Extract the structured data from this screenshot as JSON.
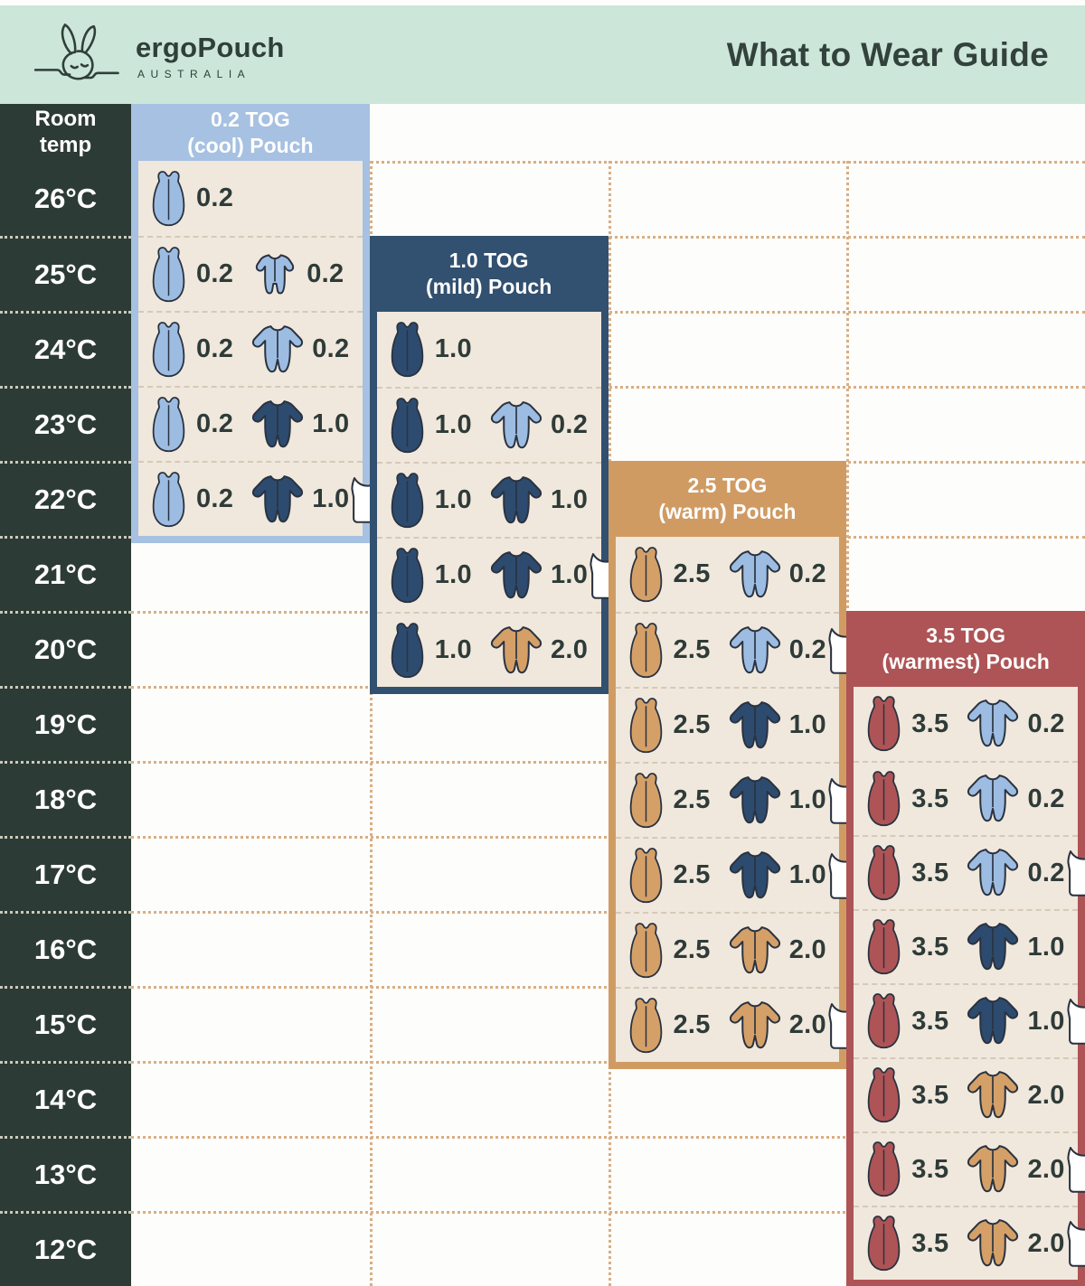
{
  "header": {
    "brand": "ergoPouch",
    "brand_sub": "AUSTRALIA",
    "title": "What to Wear Guide"
  },
  "temp_column": {
    "header_line1": "Room",
    "header_line2": "temp"
  },
  "colors": {
    "topbar_bg": "#cce6da",
    "dark_column_bg": "#2d3b36",
    "page_bg": "#fdfdfb",
    "panel_body_bg": "#f0e8dc",
    "text_dark": "#2e3b39",
    "text_light": "#ffffff",
    "grid_dot": "#d9ae84",
    "row_dash": "#d6c9b8",
    "icon_outline": "#2a3240",
    "garments": {
      "lightblue": "#9dbce2",
      "navy": "#2d4b6e",
      "tan": "#d4a068",
      "maroon": "#ae5456",
      "white": "#ffffff"
    }
  },
  "chart_data": {
    "type": "table",
    "title": "What to Wear Guide",
    "row_axis_label": "Room temp",
    "temps": [
      "26°C",
      "25°C",
      "24°C",
      "23°C",
      "22°C",
      "21°C",
      "20°C",
      "19°C",
      "18°C",
      "17°C",
      "16°C",
      "15°C",
      "14°C",
      "13°C",
      "12°C"
    ],
    "panels": [
      {
        "id": "cool",
        "title_line1": "0.2 TOG",
        "title_line2": "(cool) Pouch",
        "header_color": "#a6c1e1",
        "rows": [
          {
            "temp": "26°C",
            "items": [
              {
                "icon": "pouch",
                "color": "lightblue",
                "tog": "0.2"
              }
            ]
          },
          {
            "temp": "25°C",
            "items": [
              {
                "icon": "pouch",
                "color": "lightblue",
                "tog": "0.2"
              },
              {
                "icon": "romper",
                "color": "lightblue",
                "tog": "0.2"
              }
            ]
          },
          {
            "temp": "24°C",
            "items": [
              {
                "icon": "pouch",
                "color": "lightblue",
                "tog": "0.2"
              },
              {
                "icon": "sleepsuit",
                "color": "lightblue",
                "tog": "0.2"
              }
            ]
          },
          {
            "temp": "23°C",
            "items": [
              {
                "icon": "pouch",
                "color": "lightblue",
                "tog": "0.2"
              },
              {
                "icon": "sleepsuit",
                "color": "navy",
                "tog": "1.0"
              }
            ]
          },
          {
            "temp": "22°C",
            "items": [
              {
                "icon": "pouch",
                "color": "lightblue",
                "tog": "0.2"
              },
              {
                "icon": "sleepsuit",
                "color": "navy",
                "tog": "1.0"
              },
              {
                "icon": "singlet",
                "color": "white"
              }
            ]
          }
        ]
      },
      {
        "id": "mild",
        "title_line1": "1.0 TOG",
        "title_line2": "(mild) Pouch",
        "header_color": "#32506f",
        "rows": [
          {
            "temp": "24°C",
            "items": [
              {
                "icon": "pouch",
                "color": "navy",
                "tog": "1.0"
              }
            ]
          },
          {
            "temp": "23°C",
            "items": [
              {
                "icon": "pouch",
                "color": "navy",
                "tog": "1.0"
              },
              {
                "icon": "sleepsuit",
                "color": "lightblue",
                "tog": "0.2"
              }
            ]
          },
          {
            "temp": "22°C",
            "items": [
              {
                "icon": "pouch",
                "color": "navy",
                "tog": "1.0"
              },
              {
                "icon": "sleepsuit",
                "color": "navy",
                "tog": "1.0"
              }
            ]
          },
          {
            "temp": "21°C",
            "items": [
              {
                "icon": "pouch",
                "color": "navy",
                "tog": "1.0"
              },
              {
                "icon": "sleepsuit",
                "color": "navy",
                "tog": "1.0"
              },
              {
                "icon": "singlet",
                "color": "white"
              }
            ]
          },
          {
            "temp": "20°C",
            "items": [
              {
                "icon": "pouch",
                "color": "navy",
                "tog": "1.0"
              },
              {
                "icon": "sleepsuit",
                "color": "tan",
                "tog": "2.0"
              }
            ]
          }
        ]
      },
      {
        "id": "warm",
        "title_line1": "2.5 TOG",
        "title_line2": "(warm) Pouch",
        "header_color": "#d09b63",
        "rows": [
          {
            "temp": "21°C",
            "items": [
              {
                "icon": "pouch",
                "color": "tan",
                "tog": "2.5"
              },
              {
                "icon": "sleepsuit",
                "color": "lightblue",
                "tog": "0.2"
              }
            ]
          },
          {
            "temp": "20°C",
            "items": [
              {
                "icon": "pouch",
                "color": "tan",
                "tog": "2.5"
              },
              {
                "icon": "sleepsuit",
                "color": "lightblue",
                "tog": "0.2"
              },
              {
                "icon": "singlet",
                "color": "white"
              }
            ]
          },
          {
            "temp": "19°C",
            "items": [
              {
                "icon": "pouch",
                "color": "tan",
                "tog": "2.5"
              },
              {
                "icon": "sleepsuit",
                "color": "navy",
                "tog": "1.0"
              }
            ]
          },
          {
            "temp": "18°C",
            "items": [
              {
                "icon": "pouch",
                "color": "tan",
                "tog": "2.5"
              },
              {
                "icon": "sleepsuit",
                "color": "navy",
                "tog": "1.0"
              },
              {
                "icon": "singlet",
                "color": "white"
              }
            ]
          },
          {
            "temp": "17°C",
            "items": [
              {
                "icon": "pouch",
                "color": "tan",
                "tog": "2.5"
              },
              {
                "icon": "sleepsuit",
                "color": "navy",
                "tog": "1.0"
              },
              {
                "icon": "singlet",
                "color": "white"
              }
            ]
          },
          {
            "temp": "16°C",
            "items": [
              {
                "icon": "pouch",
                "color": "tan",
                "tog": "2.5"
              },
              {
                "icon": "sleepsuit",
                "color": "tan",
                "tog": "2.0"
              }
            ]
          },
          {
            "temp": "15°C",
            "items": [
              {
                "icon": "pouch",
                "color": "tan",
                "tog": "2.5"
              },
              {
                "icon": "sleepsuit",
                "color": "tan",
                "tog": "2.0"
              },
              {
                "icon": "singlet",
                "color": "white"
              }
            ]
          }
        ]
      },
      {
        "id": "warmest",
        "title_line1": "3.5 TOG",
        "title_line2": "(warmest) Pouch",
        "header_color": "#ae5456",
        "rows": [
          {
            "temp": "19°C",
            "items": [
              {
                "icon": "pouch",
                "color": "maroon",
                "tog": "3.5"
              },
              {
                "icon": "sleepsuit",
                "color": "lightblue",
                "tog": "0.2"
              }
            ]
          },
          {
            "temp": "18°C",
            "items": [
              {
                "icon": "pouch",
                "color": "maroon",
                "tog": "3.5"
              },
              {
                "icon": "sleepsuit",
                "color": "lightblue",
                "tog": "0.2"
              }
            ]
          },
          {
            "temp": "17°C",
            "items": [
              {
                "icon": "pouch",
                "color": "maroon",
                "tog": "3.5"
              },
              {
                "icon": "sleepsuit",
                "color": "lightblue",
                "tog": "0.2"
              },
              {
                "icon": "singlet",
                "color": "white"
              }
            ]
          },
          {
            "temp": "16°C",
            "items": [
              {
                "icon": "pouch",
                "color": "maroon",
                "tog": "3.5"
              },
              {
                "icon": "sleepsuit",
                "color": "navy",
                "tog": "1.0"
              }
            ]
          },
          {
            "temp": "15°C",
            "items": [
              {
                "icon": "pouch",
                "color": "maroon",
                "tog": "3.5"
              },
              {
                "icon": "sleepsuit",
                "color": "navy",
                "tog": "1.0"
              },
              {
                "icon": "singlet",
                "color": "white"
              }
            ]
          },
          {
            "temp": "14°C",
            "items": [
              {
                "icon": "pouch",
                "color": "maroon",
                "tog": "3.5"
              },
              {
                "icon": "sleepsuit",
                "color": "tan",
                "tog": "2.0"
              }
            ]
          },
          {
            "temp": "13°C",
            "items": [
              {
                "icon": "pouch",
                "color": "maroon",
                "tog": "3.5"
              },
              {
                "icon": "sleepsuit",
                "color": "tan",
                "tog": "2.0"
              },
              {
                "icon": "singlet",
                "color": "white"
              }
            ]
          },
          {
            "temp": "12°C",
            "items": [
              {
                "icon": "pouch",
                "color": "maroon",
                "tog": "3.5"
              },
              {
                "icon": "sleepsuit",
                "color": "tan",
                "tog": "2.0"
              },
              {
                "icon": "singlet",
                "color": "white"
              }
            ]
          }
        ]
      }
    ]
  }
}
